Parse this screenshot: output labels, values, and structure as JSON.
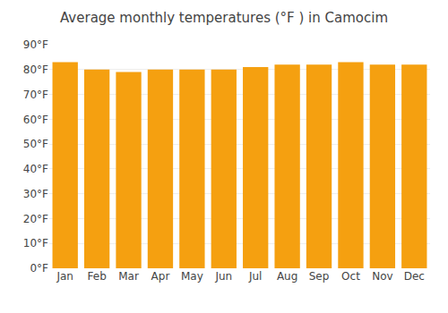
{
  "chart_data": {
    "type": "bar",
    "title": "Average monthly temperatures (°F ) in Camocim",
    "categories": [
      "Jan",
      "Feb",
      "Mar",
      "Apr",
      "May",
      "Jun",
      "Jul",
      "Aug",
      "Sep",
      "Oct",
      "Nov",
      "Dec"
    ],
    "values": [
      83,
      80,
      79,
      80,
      80,
      80,
      81,
      82,
      82,
      83,
      82,
      82
    ],
    "color": "#F5A010",
    "ylim": [
      0,
      90
    ],
    "yticks": [
      {
        "value": 0,
        "label": "0°F"
      },
      {
        "value": 10,
        "label": "10°F"
      },
      {
        "value": 20,
        "label": "20°F"
      },
      {
        "value": 30,
        "label": "30°F"
      },
      {
        "value": 40,
        "label": "40°F"
      },
      {
        "value": 50,
        "label": "50°F"
      },
      {
        "value": 60,
        "label": "60°F"
      },
      {
        "value": 70,
        "label": "70°F"
      },
      {
        "value": 80,
        "label": "80°F"
      },
      {
        "value": 90,
        "label": "90°F"
      }
    ],
    "grid": true
  }
}
